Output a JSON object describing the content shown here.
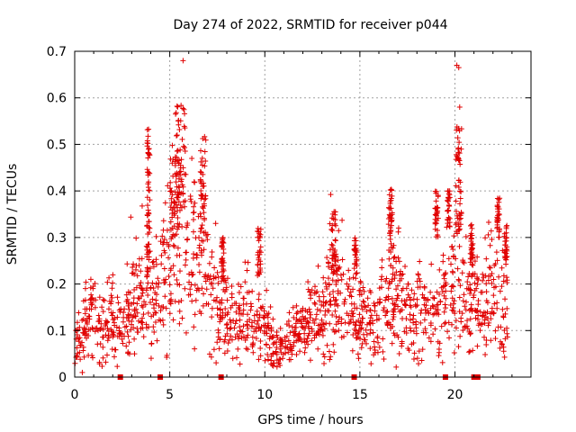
{
  "chart_data": {
    "type": "scatter",
    "title": "Day 274 of 2022, SRMTID for receiver p044",
    "xlabel": "GPS time / hours",
    "ylabel": "SRMTID / TECUs",
    "xlim": [
      0,
      24
    ],
    "ylim": [
      0,
      0.7
    ],
    "x_ticks": [
      0,
      5,
      10,
      15,
      20
    ],
    "y_ticks": [
      0,
      0.1,
      0.2,
      0.3,
      0.4,
      0.5,
      0.6,
      0.7
    ],
    "x_tick_labels": [
      "0",
      "5",
      "10",
      "15",
      "20"
    ],
    "y_tick_labels": [
      "0",
      "0.1",
      "0.2",
      "0.3",
      "0.4",
      "0.5",
      "0.6",
      "0.7"
    ],
    "grid": true,
    "point_color": "#e00000",
    "marker": "+",
    "profile": [
      {
        "x": 0.0,
        "y": 0.07
      },
      {
        "x": 0.3,
        "y": 0.08
      },
      {
        "x": 0.6,
        "y": 0.12
      },
      {
        "x": 1.0,
        "y": 0.13
      },
      {
        "x": 1.5,
        "y": 0.12
      },
      {
        "x": 2.0,
        "y": 0.12
      },
      {
        "x": 2.5,
        "y": 0.11
      },
      {
        "x": 3.0,
        "y": 0.16
      },
      {
        "x": 3.5,
        "y": 0.17
      },
      {
        "x": 4.0,
        "y": 0.17
      },
      {
        "x": 4.5,
        "y": 0.18
      },
      {
        "x": 5.0,
        "y": 0.24
      },
      {
        "x": 5.5,
        "y": 0.3
      },
      {
        "x": 6.0,
        "y": 0.27
      },
      {
        "x": 6.5,
        "y": 0.23
      },
      {
        "x": 7.0,
        "y": 0.2
      },
      {
        "x": 7.5,
        "y": 0.15
      },
      {
        "x": 8.0,
        "y": 0.12
      },
      {
        "x": 8.5,
        "y": 0.11
      },
      {
        "x": 9.0,
        "y": 0.13
      },
      {
        "x": 9.5,
        "y": 0.15
      },
      {
        "x": 10.0,
        "y": 0.11
      },
      {
        "x": 10.5,
        "y": 0.07
      },
      {
        "x": 11.0,
        "y": 0.06
      },
      {
        "x": 11.5,
        "y": 0.08
      },
      {
        "x": 12.0,
        "y": 0.1
      },
      {
        "x": 12.5,
        "y": 0.12
      },
      {
        "x": 13.0,
        "y": 0.14
      },
      {
        "x": 13.5,
        "y": 0.18
      },
      {
        "x": 14.0,
        "y": 0.16
      },
      {
        "x": 14.5,
        "y": 0.14
      },
      {
        "x": 15.0,
        "y": 0.12
      },
      {
        "x": 15.5,
        "y": 0.12
      },
      {
        "x": 16.0,
        "y": 0.12
      },
      {
        "x": 16.5,
        "y": 0.16
      },
      {
        "x": 17.0,
        "y": 0.17
      },
      {
        "x": 17.5,
        "y": 0.13
      },
      {
        "x": 18.0,
        "y": 0.14
      },
      {
        "x": 18.5,
        "y": 0.15
      },
      {
        "x": 19.0,
        "y": 0.12
      },
      {
        "x": 19.5,
        "y": 0.16
      },
      {
        "x": 20.0,
        "y": 0.2
      },
      {
        "x": 20.5,
        "y": 0.16
      },
      {
        "x": 21.0,
        "y": 0.15
      },
      {
        "x": 21.5,
        "y": 0.17
      },
      {
        "x": 22.0,
        "y": 0.18
      },
      {
        "x": 22.5,
        "y": 0.17
      },
      {
        "x": 22.8,
        "y": 0.15
      }
    ],
    "spike_clusters": [
      {
        "x_range": [
          3.8,
          3.95
        ],
        "y_range": [
          0.22,
          0.535
        ]
      },
      {
        "x_range": [
          5.3,
          5.85
        ],
        "y_range": [
          0.35,
          0.59
        ]
      },
      {
        "x_range": [
          5.0,
          5.6
        ],
        "y_range": [
          0.3,
          0.5
        ]
      },
      {
        "x_range": [
          6.6,
          6.9
        ],
        "y_range": [
          0.3,
          0.52
        ]
      },
      {
        "x_range": [
          7.7,
          7.85
        ],
        "y_range": [
          0.2,
          0.3
        ]
      },
      {
        "x_range": [
          9.6,
          9.8
        ],
        "y_range": [
          0.22,
          0.32
        ]
      },
      {
        "x_range": [
          13.5,
          13.75
        ],
        "y_range": [
          0.22,
          0.37
        ]
      },
      {
        "x_range": [
          14.7,
          14.85
        ],
        "y_range": [
          0.22,
          0.3
        ]
      },
      {
        "x_range": [
          16.5,
          16.7
        ],
        "y_range": [
          0.25,
          0.405
        ]
      },
      {
        "x_range": [
          18.95,
          19.15
        ],
        "y_range": [
          0.3,
          0.4
        ]
      },
      {
        "x_range": [
          19.6,
          19.75
        ],
        "y_range": [
          0.32,
          0.4
        ]
      },
      {
        "x_range": [
          20.05,
          20.35
        ],
        "y_range": [
          0.3,
          0.55
        ]
      },
      {
        "x_range": [
          20.8,
          20.95
        ],
        "y_range": [
          0.24,
          0.33
        ]
      },
      {
        "x_range": [
          22.2,
          22.35
        ],
        "y_range": [
          0.3,
          0.385
        ]
      },
      {
        "x_range": [
          22.6,
          22.75
        ],
        "y_range": [
          0.25,
          0.335
        ]
      }
    ],
    "outliers": [
      {
        "x": 5.7,
        "y": 0.68
      },
      {
        "x": 20.1,
        "y": 0.67
      },
      {
        "x": 20.2,
        "y": 0.665
      },
      {
        "x": 20.25,
        "y": 0.58
      },
      {
        "x": 0.4,
        "y": 0.01
      },
      {
        "x": 10.5,
        "y": 0.03
      }
    ],
    "baseline_markers": {
      "y": 0,
      "x": [
        2.4,
        4.5,
        7.7,
        14.7,
        19.5,
        21.0,
        21.2
      ]
    }
  }
}
